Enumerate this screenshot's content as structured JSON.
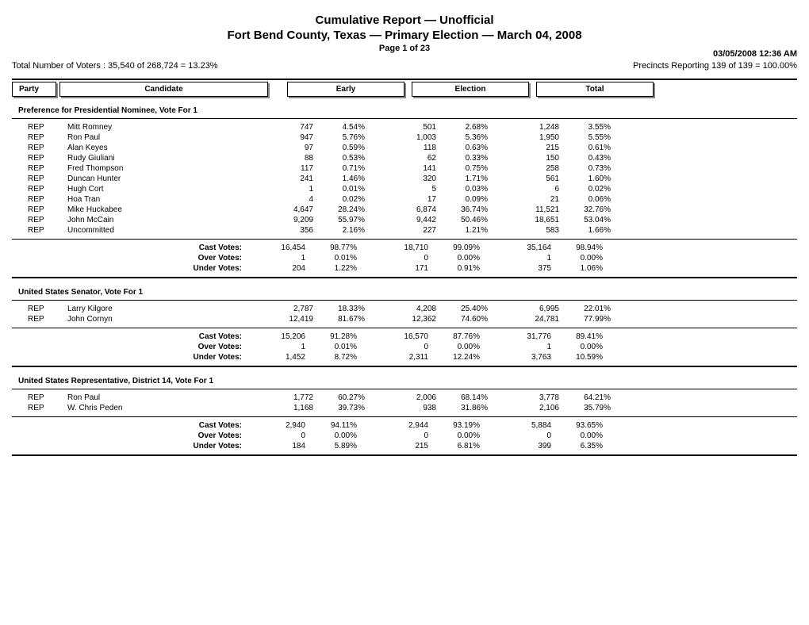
{
  "header": {
    "title1": "Cumulative Report  —  Unofficial",
    "title2": "Fort Bend County, Texas  —  Primary Election  —  March 04, 2008",
    "page": "Page 1 of 23",
    "timestamp": "03/05/2008 12:36 AM",
    "voters": "Total Number of Voters : 35,540 of 268,724 = 13.23%",
    "precincts": "Precincts Reporting 139 of 139 = 100.00%"
  },
  "columns": {
    "party": "Party",
    "candidate": "Candidate",
    "early": "Early",
    "election": "Election",
    "total": "Total"
  },
  "summary_labels": {
    "cast": "Cast Votes:",
    "over": "Over Votes:",
    "under": "Under Votes:"
  },
  "contests": [
    {
      "title": "Preference for Presidential Nominee, Vote For 1",
      "rows": [
        {
          "party": "REP",
          "name": "Mitt Romney",
          "e_n": "747",
          "e_p": "4.54%",
          "el_n": "501",
          "el_p": "2.68%",
          "t_n": "1,248",
          "t_p": "3.55%"
        },
        {
          "party": "REP",
          "name": "Ron Paul",
          "e_n": "947",
          "e_p": "5.76%",
          "el_n": "1,003",
          "el_p": "5.36%",
          "t_n": "1,950",
          "t_p": "5.55%"
        },
        {
          "party": "REP",
          "name": "Alan Keyes",
          "e_n": "97",
          "e_p": "0.59%",
          "el_n": "118",
          "el_p": "0.63%",
          "t_n": "215",
          "t_p": "0.61%"
        },
        {
          "party": "REP",
          "name": "Rudy Giuliani",
          "e_n": "88",
          "e_p": "0.53%",
          "el_n": "62",
          "el_p": "0.33%",
          "t_n": "150",
          "t_p": "0.43%"
        },
        {
          "party": "REP",
          "name": "Fred Thompson",
          "e_n": "117",
          "e_p": "0.71%",
          "el_n": "141",
          "el_p": "0.75%",
          "t_n": "258",
          "t_p": "0.73%"
        },
        {
          "party": "REP",
          "name": "Duncan Hunter",
          "e_n": "241",
          "e_p": "1.46%",
          "el_n": "320",
          "el_p": "1.71%",
          "t_n": "561",
          "t_p": "1.60%"
        },
        {
          "party": "REP",
          "name": "Hugh Cort",
          "e_n": "1",
          "e_p": "0.01%",
          "el_n": "5",
          "el_p": "0.03%",
          "t_n": "6",
          "t_p": "0.02%"
        },
        {
          "party": "REP",
          "name": "Hoa Tran",
          "e_n": "4",
          "e_p": "0.02%",
          "el_n": "17",
          "el_p": "0.09%",
          "t_n": "21",
          "t_p": "0.06%"
        },
        {
          "party": "REP",
          "name": "Mike Huckabee",
          "e_n": "4,647",
          "e_p": "28.24%",
          "el_n": "6,874",
          "el_p": "36.74%",
          "t_n": "11,521",
          "t_p": "32.76%"
        },
        {
          "party": "REP",
          "name": "John McCain",
          "e_n": "9,209",
          "e_p": "55.97%",
          "el_n": "9,442",
          "el_p": "50.46%",
          "t_n": "18,651",
          "t_p": "53.04%"
        },
        {
          "party": "REP",
          "name": "Uncommitted",
          "e_n": "356",
          "e_p": "2.16%",
          "el_n": "227",
          "el_p": "1.21%",
          "t_n": "583",
          "t_p": "1.66%"
        }
      ],
      "summary": {
        "cast": {
          "e_n": "16,454",
          "e_p": "98.77%",
          "el_n": "18,710",
          "el_p": "99.09%",
          "t_n": "35,164",
          "t_p": "98.94%"
        },
        "over": {
          "e_n": "1",
          "e_p": "0.01%",
          "el_n": "0",
          "el_p": "0.00%",
          "t_n": "1",
          "t_p": "0.00%"
        },
        "under": {
          "e_n": "204",
          "e_p": "1.22%",
          "el_n": "171",
          "el_p": "0.91%",
          "t_n": "375",
          "t_p": "1.06%"
        }
      }
    },
    {
      "title": "United States Senator, Vote For 1",
      "rows": [
        {
          "party": "REP",
          "name": "Larry Kilgore",
          "e_n": "2,787",
          "e_p": "18.33%",
          "el_n": "4,208",
          "el_p": "25.40%",
          "t_n": "6,995",
          "t_p": "22.01%"
        },
        {
          "party": "REP",
          "name": "John Cornyn",
          "e_n": "12,419",
          "e_p": "81.67%",
          "el_n": "12,362",
          "el_p": "74.60%",
          "t_n": "24,781",
          "t_p": "77.99%"
        }
      ],
      "summary": {
        "cast": {
          "e_n": "15,206",
          "e_p": "91.28%",
          "el_n": "16,570",
          "el_p": "87.76%",
          "t_n": "31,776",
          "t_p": "89.41%"
        },
        "over": {
          "e_n": "1",
          "e_p": "0.01%",
          "el_n": "0",
          "el_p": "0.00%",
          "t_n": "1",
          "t_p": "0.00%"
        },
        "under": {
          "e_n": "1,452",
          "e_p": "8.72%",
          "el_n": "2,311",
          "el_p": "12.24%",
          "t_n": "3,763",
          "t_p": "10.59%"
        }
      }
    },
    {
      "title": "United States Representative, District 14, Vote For 1",
      "rows": [
        {
          "party": "REP",
          "name": "Ron Paul",
          "e_n": "1,772",
          "e_p": "60.27%",
          "el_n": "2,006",
          "el_p": "68.14%",
          "t_n": "3,778",
          "t_p": "64.21%"
        },
        {
          "party": "REP",
          "name": "W. Chris Peden",
          "e_n": "1,168",
          "e_p": "39.73%",
          "el_n": "938",
          "el_p": "31.86%",
          "t_n": "2,106",
          "t_p": "35.79%"
        }
      ],
      "summary": {
        "cast": {
          "e_n": "2,940",
          "e_p": "94.11%",
          "el_n": "2,944",
          "el_p": "93.19%",
          "t_n": "5,884",
          "t_p": "93.65%"
        },
        "over": {
          "e_n": "0",
          "e_p": "0.00%",
          "el_n": "0",
          "el_p": "0.00%",
          "t_n": "0",
          "t_p": "0.00%"
        },
        "under": {
          "e_n": "184",
          "e_p": "5.89%",
          "el_n": "215",
          "el_p": "6.81%",
          "t_n": "399",
          "t_p": "6.35%"
        }
      }
    }
  ]
}
